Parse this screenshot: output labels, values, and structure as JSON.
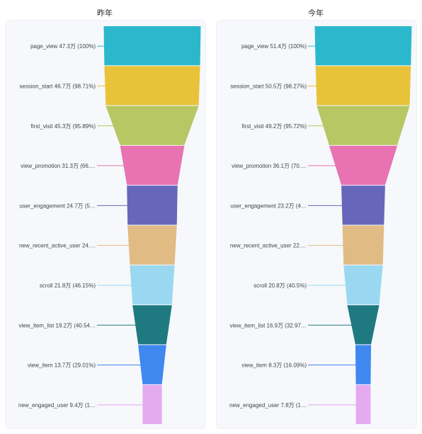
{
  "chart_data": [
    {
      "type": "funnel",
      "title": "昨年",
      "stages": [
        {
          "name": "page_view",
          "value": 47.3,
          "percent": "100%",
          "label": "page_view 47.3万 (100%)",
          "color": "#2bb8cc"
        },
        {
          "name": "session_start",
          "value": 46.7,
          "percent": "98.71%",
          "label": "session_start 46.7万 (98.71%)",
          "color": "#e8c33a"
        },
        {
          "name": "first_visit",
          "value": 45.3,
          "percent": "95.89%",
          "label": "first_visit 45.3万 (95.89%)",
          "color": "#b6c764"
        },
        {
          "name": "view_promotion",
          "value": 31.3,
          "percent": "66.…",
          "label": "view_promotion 31.3万 (66.…",
          "color": "#e872b2"
        },
        {
          "name": "user_engagement",
          "value": 24.7,
          "percent": "5…",
          "label": "user_engagement 24.7万 (5…",
          "color": "#6666bb"
        },
        {
          "name": "new_recent_active_user",
          "value": 24,
          "percent": "",
          "label": "new_recent_active_user 24.…",
          "color": "#e0bb84"
        },
        {
          "name": "scroll",
          "value": 21.8,
          "percent": "46.15%",
          "label": "scroll 21.8万 (46.15%)",
          "color": "#9ad8f2"
        },
        {
          "name": "view_item_list",
          "value": 19.2,
          "percent": "40.54…",
          "label": "view_item_list 19.2万 (40.54…",
          "color": "#1e7a80"
        },
        {
          "name": "view_item",
          "value": 13.7,
          "percent": "29.01%",
          "label": "view_item 13.7万 (29.01%)",
          "color": "#3f88f0"
        },
        {
          "name": "new_engaged_user",
          "value": 9.4,
          "percent": "1…",
          "label": "new_engaged_user 9.4万 (1…",
          "color": "#e4aaf0"
        }
      ]
    },
    {
      "type": "funnel",
      "title": "今年",
      "stages": [
        {
          "name": "page_view",
          "value": 51.4,
          "percent": "100%",
          "label": "page_view 51.4万 (100%)",
          "color": "#2bb8cc"
        },
        {
          "name": "session_start",
          "value": 50.5,
          "percent": "98.27%",
          "label": "session_start 50.5万 (98.27%)",
          "color": "#e8c33a"
        },
        {
          "name": "first_visit",
          "value": 49.2,
          "percent": "95.72%",
          "label": "first_visit 49.2万 (95.72%)",
          "color": "#b6c764"
        },
        {
          "name": "view_promotion",
          "value": 36.1,
          "percent": "70.…",
          "label": "view_promotion 36.1万 (70.…",
          "color": "#e872b2"
        },
        {
          "name": "user_engagement",
          "value": 23.2,
          "percent": "4…",
          "label": "user_engagement 23.2万 (4…",
          "color": "#6666bb"
        },
        {
          "name": "new_recent_active_user",
          "value": 22,
          "percent": "",
          "label": "new_recent_active_user 22.…",
          "color": "#e0bb84"
        },
        {
          "name": "scroll",
          "value": 20.8,
          "percent": "40.5%",
          "label": "scroll 20.8万 (40.5%)",
          "color": "#9ad8f2"
        },
        {
          "name": "view_item_list",
          "value": 16.9,
          "percent": "32.97…",
          "label": "view_item_list 16.9万 (32.97…",
          "color": "#1e7a80"
        },
        {
          "name": "view_item",
          "value": 8.3,
          "percent": "16.09%",
          "label": "view_item 8.3万 (16.09%)",
          "color": "#3f88f0"
        },
        {
          "name": "new_engaged_user",
          "value": 7.8,
          "percent": "1…",
          "label": "new_engaged_user 7.8万 (1…",
          "color": "#e4aaf0"
        }
      ]
    }
  ]
}
